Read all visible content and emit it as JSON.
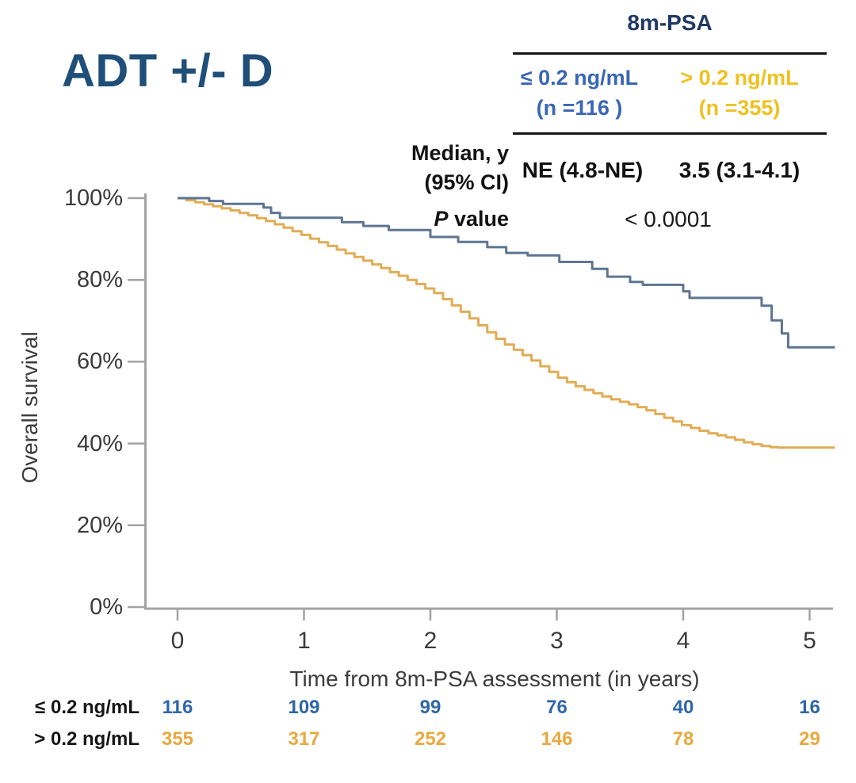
{
  "title": "ADT +/- D",
  "colors": {
    "title_navy": "#1f4e79",
    "header_navy": "#1f3864",
    "group_low_text": "#3a66b4",
    "group_high_text": "#efc120",
    "curve_low": "#5d7590",
    "curve_high": "#e1ac55",
    "risk_low": "#2f66a8",
    "risk_high": "#e8a93f",
    "axis_gray": "#a3a3a3",
    "tick_text": "#3a3a3a"
  },
  "stats_table": {
    "header": "8m-PSA",
    "columns": [
      {
        "label": "≤ 0.2 ng/mL",
        "n_label": "(n =116 )",
        "color": "#3a66b4"
      },
      {
        "label": "> 0.2 ng/mL",
        "n_label": "(n =355)",
        "color": "#efc120"
      }
    ],
    "rows": [
      {
        "label_line1": "Median, y",
        "label_line2": "(95% CI)",
        "values": [
          "NE (4.8-NE)",
          "3.5 (3.1-4.1)"
        ]
      },
      {
        "label": "P value",
        "value": "< 0.0001"
      }
    ]
  },
  "chart_data": {
    "type": "line",
    "subtype": "kaplan-meier-step",
    "title": "ADT +/- D",
    "xlabel": "Time from 8m-PSA assessment (in years)",
    "ylabel": "Overall survival",
    "xlim": [
      0,
      5.2
    ],
    "ylim": [
      0,
      100
    ],
    "xticks": [
      0,
      1,
      2,
      3,
      4,
      5
    ],
    "ytick_labels": [
      "0%",
      "20%",
      "40%",
      "60%",
      "80%",
      "100%"
    ],
    "ytick_values": [
      0,
      20,
      40,
      60,
      80,
      100
    ],
    "grid": false,
    "legend_position": "none",
    "series": [
      {
        "name": "≤ 0.2 ng/mL",
        "color": "#5d7590",
        "points": [
          [
            0,
            100
          ],
          [
            0.25,
            99.3
          ],
          [
            0.36,
            98.6
          ],
          [
            0.68,
            97.7
          ],
          [
            0.74,
            96.4
          ],
          [
            0.81,
            95.2
          ],
          [
            1.3,
            94.1
          ],
          [
            1.47,
            93.2
          ],
          [
            1.67,
            92.2
          ],
          [
            2.0,
            90.5
          ],
          [
            2.22,
            89.3
          ],
          [
            2.45,
            88.0
          ],
          [
            2.6,
            86.6
          ],
          [
            2.77,
            86.0
          ],
          [
            3.02,
            84.4
          ],
          [
            3.28,
            82.7
          ],
          [
            3.4,
            80.8
          ],
          [
            3.58,
            79.5
          ],
          [
            3.68,
            78.8
          ],
          [
            4.0,
            77.2
          ],
          [
            4.05,
            75.6
          ],
          [
            4.62,
            73.7
          ],
          [
            4.7,
            70.1
          ],
          [
            4.78,
            66.9
          ],
          [
            4.83,
            63.5
          ],
          [
            5.2,
            63.5
          ]
        ]
      },
      {
        "name": "> 0.2 ng/mL",
        "color": "#e1ac55",
        "points": [
          [
            0,
            100
          ],
          [
            0.07,
            99.5
          ],
          [
            0.14,
            99.0
          ],
          [
            0.21,
            98.5
          ],
          [
            0.28,
            98.0
          ],
          [
            0.35,
            97.5
          ],
          [
            0.42,
            97.0
          ],
          [
            0.49,
            96.4
          ],
          [
            0.56,
            95.8
          ],
          [
            0.63,
            95.1
          ],
          [
            0.7,
            94.4
          ],
          [
            0.77,
            93.6
          ],
          [
            0.84,
            92.8
          ],
          [
            0.91,
            91.9
          ],
          [
            0.98,
            91.0
          ],
          [
            1.05,
            90.1
          ],
          [
            1.12,
            89.2
          ],
          [
            1.19,
            88.3
          ],
          [
            1.26,
            87.4
          ],
          [
            1.33,
            86.5
          ],
          [
            1.4,
            85.6
          ],
          [
            1.47,
            84.7
          ],
          [
            1.54,
            83.8
          ],
          [
            1.61,
            82.9
          ],
          [
            1.68,
            81.9
          ],
          [
            1.75,
            81.0
          ],
          [
            1.82,
            80.0
          ],
          [
            1.89,
            79.0
          ],
          [
            1.96,
            77.9
          ],
          [
            2.03,
            76.8
          ],
          [
            2.1,
            75.3
          ],
          [
            2.17,
            73.8
          ],
          [
            2.24,
            72.2
          ],
          [
            2.31,
            70.6
          ],
          [
            2.38,
            68.9
          ],
          [
            2.45,
            67.2
          ],
          [
            2.52,
            65.6
          ],
          [
            2.59,
            64.2
          ],
          [
            2.66,
            62.9
          ],
          [
            2.73,
            61.6
          ],
          [
            2.8,
            60.3
          ],
          [
            2.87,
            58.9
          ],
          [
            2.94,
            57.5
          ],
          [
            3.01,
            56.1
          ],
          [
            3.08,
            55.0
          ],
          [
            3.15,
            54.0
          ],
          [
            3.22,
            53.1
          ],
          [
            3.29,
            52.3
          ],
          [
            3.36,
            51.5
          ],
          [
            3.43,
            50.8
          ],
          [
            3.5,
            50.2
          ],
          [
            3.57,
            49.6
          ],
          [
            3.64,
            48.9
          ],
          [
            3.71,
            48.1
          ],
          [
            3.78,
            47.2
          ],
          [
            3.85,
            46.3
          ],
          [
            3.92,
            45.4
          ],
          [
            3.99,
            44.5
          ],
          [
            4.06,
            43.8
          ],
          [
            4.13,
            43.1
          ],
          [
            4.2,
            42.5
          ],
          [
            4.27,
            42.0
          ],
          [
            4.34,
            41.5
          ],
          [
            4.41,
            40.9
          ],
          [
            4.48,
            40.3
          ],
          [
            4.55,
            39.8
          ],
          [
            4.62,
            39.4
          ],
          [
            4.69,
            39.1
          ],
          [
            4.75,
            39.0
          ],
          [
            5.2,
            39.0
          ]
        ]
      }
    ]
  },
  "at_risk": {
    "rows": [
      {
        "label": "≤ 0.2 ng/mL",
        "color": "#2f66a8",
        "values": [
          116,
          109,
          99,
          76,
          40,
          16
        ]
      },
      {
        "label": "> 0.2 ng/mL",
        "color": "#e8a93f",
        "values": [
          355,
          317,
          252,
          146,
          78,
          29
        ]
      }
    ]
  }
}
